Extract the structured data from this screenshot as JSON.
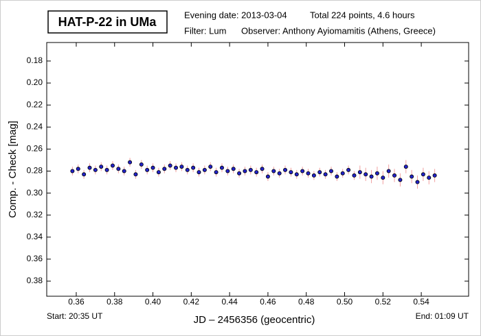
{
  "chart_data": {
    "type": "scatter",
    "title": "HAT-P-22 in UMa",
    "info": [
      "Evening date: 2013-03-04",
      "Total 224 points, 4.6 hours",
      "Filter: Lum",
      "Observer: Anthony Ayiomamitis (Athens, Greece)"
    ],
    "x_label": "JD – 2456356  (geocentric)",
    "y_label": "Comp. - Check [mag]",
    "start_label": "Start: 20:35 UT",
    "end_label": "End: 01:09 UT",
    "xlim": [
      0.3446,
      0.5647
    ],
    "ylim": [
      0.3937,
      0.1632
    ],
    "xticks": [
      0.36,
      0.38,
      {
        "value": 0.4,
        "label": "0.40"
      },
      0.42,
      0.44,
      0.46,
      0.48,
      {
        "value": 0.5,
        "label": "0.50"
      },
      0.52,
      0.54
    ],
    "yticks": [
      0.18,
      {
        "value": 0.2,
        "label": "0.20"
      },
      0.22,
      0.24,
      0.26,
      0.28,
      {
        "value": 0.3,
        "label": "0.30"
      },
      0.32,
      0.34,
      0.36,
      0.38
    ],
    "color": "#2222c8",
    "error_color": "#f0a0a0",
    "x": [
      0.358,
      0.361,
      0.364,
      0.367,
      0.37,
      0.373,
      0.376,
      0.379,
      0.382,
      0.385,
      0.388,
      0.391,
      0.394,
      0.397,
      0.4,
      0.403,
      0.406,
      0.409,
      0.412,
      0.415,
      0.418,
      0.421,
      0.424,
      0.427,
      0.43,
      0.433,
      0.436,
      0.439,
      0.442,
      0.445,
      0.448,
      0.451,
      0.454,
      0.457,
      0.46,
      0.463,
      0.466,
      0.469,
      0.472,
      0.475,
      0.478,
      0.481,
      0.484,
      0.487,
      0.49,
      0.493,
      0.496,
      0.499,
      0.502,
      0.505,
      0.508,
      0.511,
      0.514,
      0.517,
      0.52,
      0.523,
      0.526,
      0.529,
      0.532,
      0.535,
      0.538,
      0.541,
      0.544,
      0.547
    ],
    "values": [
      0.28,
      0.278,
      0.283,
      0.277,
      0.279,
      0.276,
      0.279,
      0.275,
      0.278,
      0.28,
      0.272,
      0.283,
      0.274,
      0.279,
      0.277,
      0.281,
      0.278,
      0.275,
      0.277,
      0.276,
      0.279,
      0.277,
      0.281,
      0.279,
      0.276,
      0.281,
      0.277,
      0.28,
      0.278,
      0.282,
      0.28,
      0.279,
      0.281,
      0.278,
      0.285,
      0.28,
      0.282,
      0.279,
      0.281,
      0.283,
      0.28,
      0.282,
      0.284,
      0.281,
      0.283,
      0.28,
      0.285,
      0.282,
      0.279,
      0.284,
      0.281,
      0.283,
      0.285,
      0.282,
      0.286,
      0.28,
      0.284,
      0.288,
      0.276,
      0.285,
      0.29,
      0.283,
      0.286,
      0.284
    ],
    "errors": [
      0.004,
      0.004,
      0.004,
      0.004,
      0.004,
      0.004,
      0.004,
      0.004,
      0.004,
      0.004,
      0.004,
      0.004,
      0.004,
      0.004,
      0.004,
      0.004,
      0.004,
      0.004,
      0.004,
      0.004,
      0.004,
      0.004,
      0.004,
      0.004,
      0.004,
      0.004,
      0.004,
      0.004,
      0.004,
      0.004,
      0.004,
      0.004,
      0.004,
      0.004,
      0.004,
      0.004,
      0.004,
      0.004,
      0.004,
      0.004,
      0.004,
      0.004,
      0.004,
      0.004,
      0.004,
      0.004,
      0.004,
      0.004,
      0.004,
      0.004,
      0.006,
      0.006,
      0.006,
      0.006,
      0.006,
      0.006,
      0.006,
      0.006,
      0.006,
      0.006,
      0.006,
      0.006,
      0.006,
      0.006
    ]
  }
}
